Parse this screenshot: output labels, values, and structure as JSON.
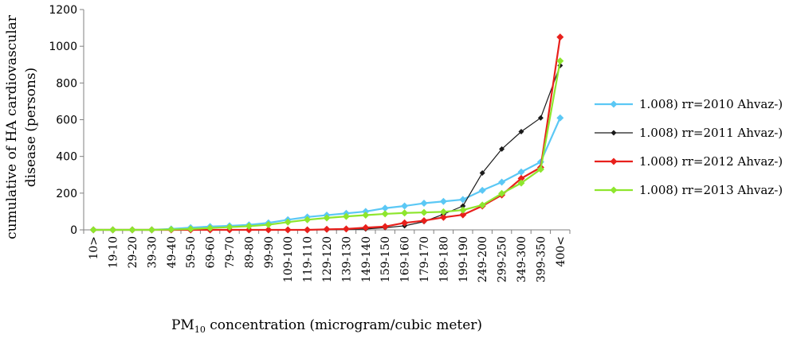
{
  "chart_data": {
    "type": "line",
    "title": "",
    "xlabel": {
      "main": "PM",
      "sub": "10",
      "rest": " concentration (microgram/cubic meter)"
    },
    "ylabel": {
      "line1": "cumulative of HA cardiovascular",
      "line2": "disease (persons)"
    },
    "ylim": [
      0,
      1200
    ],
    "yticks": [
      "0",
      "200",
      "400",
      "600",
      "800",
      "1000",
      "1200"
    ],
    "grid": false,
    "legend_position": "right",
    "categories": [
      "10>",
      "19-10",
      "29-20",
      "39-30",
      "49-40",
      "59-50",
      "69-60",
      "79-70",
      "89-80",
      "99-90",
      "109-100",
      "119-110",
      "129-120",
      "139-130",
      "149-140",
      "159-150",
      "169-160",
      "179-170",
      "189-180",
      "199-190",
      "249-200",
      "299-250",
      "349-300",
      "399-350",
      "400<"
    ],
    "series": [
      {
        "name": "1.008) rr=2010 Ahvaz-)",
        "color": "#5bc8f5",
        "marker": "diamond",
        "values": [
          0,
          0,
          0,
          0,
          5,
          12,
          18,
          22,
          27,
          38,
          55,
          70,
          80,
          90,
          100,
          118,
          130,
          145,
          155,
          165,
          215,
          260,
          315,
          370,
          610
        ]
      },
      {
        "name": "1.008) rr=2011 Ahvaz-)",
        "color": "#1a1a1a",
        "marker": "diamond",
        "values": [
          0,
          0,
          0,
          0,
          0,
          0,
          0,
          0,
          0,
          0,
          0,
          0,
          0,
          2,
          5,
          12,
          22,
          45,
          85,
          130,
          310,
          440,
          535,
          610,
          895
        ]
      },
      {
        "name": "1.008) rr=2012 Ahvaz-)",
        "color": "#e8201c",
        "marker": "diamond",
        "values": [
          0,
          0,
          0,
          0,
          0,
          0,
          0,
          0,
          0,
          0,
          0,
          0,
          3,
          5,
          12,
          18,
          38,
          50,
          68,
          82,
          130,
          190,
          280,
          340,
          1050
        ]
      },
      {
        "name": "1.008) rr=2013 Ahvaz-)",
        "color": "#8ee62e",
        "marker": "diamond",
        "values": [
          0,
          0,
          0,
          0,
          2,
          5,
          10,
          15,
          20,
          28,
          42,
          55,
          65,
          73,
          80,
          87,
          92,
          95,
          98,
          108,
          135,
          198,
          255,
          330,
          920
        ]
      }
    ]
  }
}
